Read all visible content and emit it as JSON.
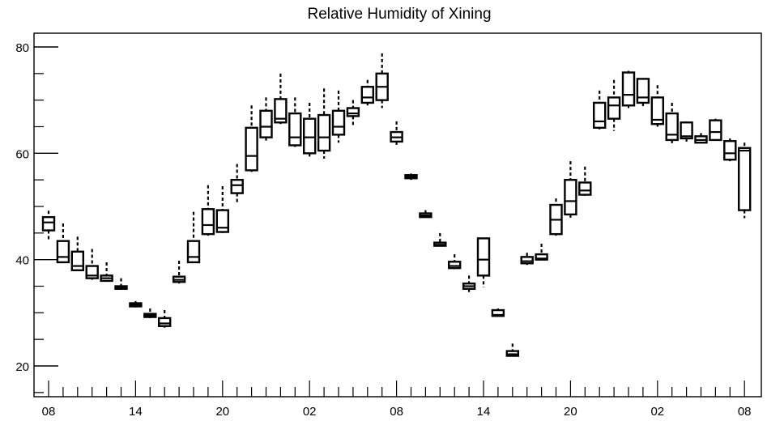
{
  "chart_data": {
    "type": "box",
    "title": "Relative Humidity of Xining",
    "xlabel": "",
    "ylabel": "",
    "ylim": [
      15,
      82.5
    ],
    "grid": false,
    "y_major_ticks": [
      20,
      40,
      60,
      80
    ],
    "y_minor_step": 5,
    "x_tick_labels": [
      "08",
      "14",
      "20",
      "02",
      "08",
      "14",
      "20",
      "02",
      "08"
    ],
    "x_tick_label_positions": [
      0,
      6,
      12,
      18,
      24,
      30,
      36,
      42,
      48
    ],
    "boxes": [
      {
        "t": 0,
        "whisker_low": 43.8,
        "q1": 45.5,
        "median": 47.0,
        "q3": 48.0,
        "whisker_high": 49.2
      },
      {
        "t": 1,
        "whisker_low": 39.5,
        "q1": 39.5,
        "median": 40.5,
        "q3": 43.5,
        "whisker_high": 46.8
      },
      {
        "t": 2,
        "whisker_low": 38.0,
        "q1": 38.0,
        "median": 38.8,
        "q3": 41.5,
        "whisker_high": 44.3
      },
      {
        "t": 3,
        "whisker_low": 36.2,
        "q1": 36.5,
        "median": 37.0,
        "q3": 38.8,
        "whisker_high": 42.0
      },
      {
        "t": 4,
        "whisker_low": 36.0,
        "q1": 36.0,
        "median": 36.5,
        "q3": 37.0,
        "whisker_high": 39.5
      },
      {
        "t": 5,
        "whisker_low": 34.5,
        "q1": 34.5,
        "median": 34.8,
        "q3": 35.0,
        "whisker_high": 36.5
      },
      {
        "t": 6,
        "whisker_low": 31.0,
        "q1": 31.2,
        "median": 31.5,
        "q3": 31.8,
        "whisker_high": 32.2
      },
      {
        "t": 7,
        "whisker_low": 29.0,
        "q1": 29.2,
        "median": 29.5,
        "q3": 29.8,
        "whisker_high": 30.8
      },
      {
        "t": 8,
        "whisker_low": 27.2,
        "q1": 27.5,
        "median": 28.0,
        "q3": 29.0,
        "whisker_high": 30.5
      },
      {
        "t": 9,
        "whisker_low": 35.5,
        "q1": 35.8,
        "median": 36.2,
        "q3": 36.8,
        "whisker_high": 39.8
      },
      {
        "t": 10,
        "whisker_low": 39.5,
        "q1": 39.5,
        "median": 40.5,
        "q3": 43.5,
        "whisker_high": 49.0
      },
      {
        "t": 11,
        "whisker_low": 44.5,
        "q1": 44.8,
        "median": 46.5,
        "q3": 49.5,
        "whisker_high": 54.0
      },
      {
        "t": 12,
        "whisker_low": 45.0,
        "q1": 45.2,
        "median": 46.0,
        "q3": 49.3,
        "whisker_high": 53.8
      },
      {
        "t": 13,
        "whisker_low": 50.5,
        "q1": 52.5,
        "median": 54.0,
        "q3": 55.0,
        "whisker_high": 58.0
      },
      {
        "t": 14,
        "whisker_low": 56.5,
        "q1": 56.8,
        "median": 59.5,
        "q3": 64.8,
        "whisker_high": 69.0
      },
      {
        "t": 15,
        "whisker_low": 62.0,
        "q1": 63.0,
        "median": 65.0,
        "q3": 68.0,
        "whisker_high": 70.5
      },
      {
        "t": 16,
        "whisker_low": 65.5,
        "q1": 65.8,
        "median": 66.5,
        "q3": 70.2,
        "whisker_high": 75.0
      },
      {
        "t": 17,
        "whisker_low": 61.2,
        "q1": 61.5,
        "median": 63.0,
        "q3": 67.5,
        "whisker_high": 70.5
      },
      {
        "t": 18,
        "whisker_low": 59.0,
        "q1": 60.0,
        "median": 63.0,
        "q3": 66.5,
        "whisker_high": 69.5
      },
      {
        "t": 19,
        "whisker_low": 59.0,
        "q1": 60.5,
        "median": 63.0,
        "q3": 67.2,
        "whisker_high": 72.2
      },
      {
        "t": 20,
        "whisker_low": 62.0,
        "q1": 63.5,
        "median": 65.0,
        "q3": 68.0,
        "whisker_high": 71.8
      },
      {
        "t": 21,
        "whisker_low": 65.0,
        "q1": 67.0,
        "median": 67.5,
        "q3": 68.5,
        "whisker_high": 70.0
      },
      {
        "t": 22,
        "whisker_low": 69.0,
        "q1": 69.5,
        "median": 70.5,
        "q3": 72.5,
        "whisker_high": 73.8
      },
      {
        "t": 23,
        "whisker_low": 68.5,
        "q1": 70.0,
        "median": 72.5,
        "q3": 75.0,
        "whisker_high": 78.8
      },
      {
        "t": 24,
        "whisker_low": 61.5,
        "q1": 62.2,
        "median": 63.0,
        "q3": 64.0,
        "whisker_high": 66.0
      },
      {
        "t": 25,
        "whisker_low": 55.0,
        "q1": 55.3,
        "median": 55.6,
        "q3": 55.9,
        "whisker_high": 56.2
      },
      {
        "t": 26,
        "whisker_low": 48.0,
        "q1": 48.0,
        "median": 48.3,
        "q3": 48.7,
        "whisker_high": 49.3
      },
      {
        "t": 27,
        "whisker_low": 42.5,
        "q1": 42.6,
        "median": 42.8,
        "q3": 43.2,
        "whisker_high": 45.0
      },
      {
        "t": 28,
        "whisker_low": 38.2,
        "q1": 38.4,
        "median": 38.8,
        "q3": 39.6,
        "whisker_high": 41.0
      },
      {
        "t": 29,
        "whisker_low": 33.8,
        "q1": 34.5,
        "median": 35.0,
        "q3": 35.5,
        "whisker_high": 37.0
      },
      {
        "t": 30,
        "whisker_low": 34.8,
        "q1": 37.0,
        "median": 40.0,
        "q3": 44.0,
        "whisker_high": 44.0
      },
      {
        "t": 31,
        "whisker_low": 29.3,
        "q1": 29.4,
        "median": 29.6,
        "q3": 30.5,
        "whisker_high": 30.8
      },
      {
        "t": 32,
        "whisker_low": 21.8,
        "q1": 21.9,
        "median": 22.2,
        "q3": 22.8,
        "whisker_high": 24.2
      },
      {
        "t": 33,
        "whisker_low": 39.0,
        "q1": 39.3,
        "median": 39.7,
        "q3": 40.5,
        "whisker_high": 41.3
      },
      {
        "t": 34,
        "whisker_low": 40.0,
        "q1": 40.0,
        "median": 40.2,
        "q3": 41.0,
        "whisker_high": 43.0
      },
      {
        "t": 35,
        "whisker_low": 44.5,
        "q1": 44.8,
        "median": 47.5,
        "q3": 50.3,
        "whisker_high": 51.5
      },
      {
        "t": 36,
        "whisker_low": 47.5,
        "q1": 48.5,
        "median": 51.0,
        "q3": 55.0,
        "whisker_high": 58.5
      },
      {
        "t": 37,
        "whisker_low": 52.0,
        "q1": 52.2,
        "median": 53.0,
        "q3": 54.5,
        "whisker_high": 57.5
      },
      {
        "t": 38,
        "whisker_low": 64.5,
        "q1": 64.8,
        "median": 66.0,
        "q3": 69.5,
        "whisker_high": 71.8
      },
      {
        "t": 39,
        "whisker_low": 64.2,
        "q1": 66.5,
        "median": 69.0,
        "q3": 70.5,
        "whisker_high": 73.8
      },
      {
        "t": 40,
        "whisker_low": 68.5,
        "q1": 69.0,
        "median": 71.0,
        "q3": 75.2,
        "whisker_high": 75.5
      },
      {
        "t": 41,
        "whisker_low": 68.5,
        "q1": 69.5,
        "median": 70.5,
        "q3": 74.0,
        "whisker_high": 74.0
      },
      {
        "t": 42,
        "whisker_low": 65.0,
        "q1": 65.5,
        "median": 66.3,
        "q3": 70.5,
        "whisker_high": 72.8
      },
      {
        "t": 43,
        "whisker_low": 61.5,
        "q1": 62.5,
        "median": 63.5,
        "q3": 67.5,
        "whisker_high": 69.5
      },
      {
        "t": 44,
        "whisker_low": 62.0,
        "q1": 62.8,
        "median": 63.2,
        "q3": 65.8,
        "whisker_high": 66.0
      },
      {
        "t": 45,
        "whisker_low": 62.0,
        "q1": 62.0,
        "median": 62.5,
        "q3": 63.2,
        "whisker_high": 63.8
      },
      {
        "t": 46,
        "whisker_low": 62.5,
        "q1": 62.5,
        "median": 64.0,
        "q3": 66.2,
        "whisker_high": 66.5
      },
      {
        "t": 47,
        "whisker_low": 58.5,
        "q1": 58.8,
        "median": 60.0,
        "q3": 62.3,
        "whisker_high": 62.8
      },
      {
        "t": 48,
        "whisker_low": 47.8,
        "q1": 49.3,
        "median": 60.5,
        "q3": 61.0,
        "whisker_high": 62.0
      }
    ]
  }
}
